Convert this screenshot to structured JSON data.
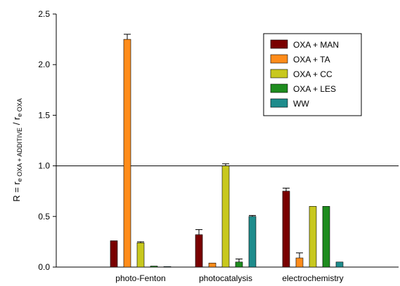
{
  "chart_data": {
    "type": "bar",
    "categories": [
      "photo-Fenton",
      "photocatalysis",
      "electrochemistry"
    ],
    "ylabel": {
      "lead": "R = r",
      "sub1": "e OXA + ADDITIVE",
      "mid": " / r",
      "sub2": "e OXA"
    },
    "ylim": [
      0,
      2.5
    ],
    "yticks": [
      "0.0",
      "0.5",
      "1.0",
      "1.5",
      "2.0",
      "2.5"
    ],
    "reference_line": 1.0,
    "legend_position": "top-right",
    "series": [
      {
        "name": "OXA + MAN",
        "color": "#7a0000",
        "values": [
          0.26,
          0.32,
          0.75
        ],
        "errors": [
          0.0,
          0.05,
          0.03
        ]
      },
      {
        "name": "OXA + TA",
        "color": "#ff8c1a",
        "values": [
          2.25,
          0.04,
          0.09
        ],
        "errors": [
          0.05,
          0.0,
          0.05
        ]
      },
      {
        "name": "OXA + CC",
        "color": "#c8c81e",
        "values": [
          0.24,
          1.0,
          0.6
        ],
        "errors": [
          0.01,
          0.02,
          0.0
        ]
      },
      {
        "name": "OXA + LES",
        "color": "#1e8c1e",
        "values": [
          0.01,
          0.05,
          0.6
        ],
        "errors": [
          0.0,
          0.03,
          0.0
        ]
      },
      {
        "name": "WW",
        "color": "#1e8c8c",
        "values": [
          0.005,
          0.5,
          0.05
        ],
        "errors": [
          0.0,
          0.01,
          0.0
        ]
      }
    ]
  }
}
